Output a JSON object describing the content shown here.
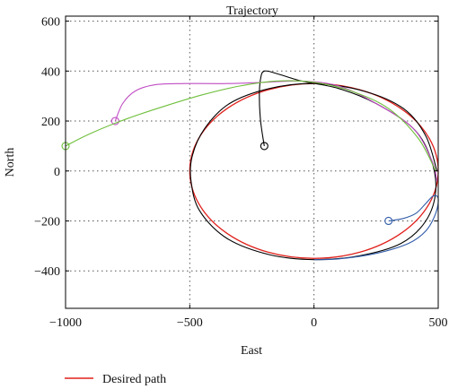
{
  "chart_data": {
    "type": "line",
    "title": "Trajectory",
    "xlabel": "East",
    "ylabel": "North",
    "xlim": [
      -1000,
      500
    ],
    "ylim": [
      -550,
      620
    ],
    "x_ticks": [
      -1000,
      -500,
      0,
      500
    ],
    "y_ticks": [
      -400,
      -200,
      0,
      200,
      400,
      600
    ],
    "grid": true,
    "legend": {
      "placement": "bottom-left",
      "entries": [
        "Desired path"
      ]
    },
    "desired_path": {
      "name": "Desired path",
      "color": "#e0201b",
      "shape": "ellipse",
      "center": [
        0,
        0
      ],
      "radius_east": 500,
      "radius_north": 350
    },
    "series": [
      {
        "color": "#000000",
        "start": [
          -200,
          100
        ],
        "points": [
          [
            -200,
            100
          ],
          [
            -215,
            200
          ],
          [
            -220,
            300
          ],
          [
            -215,
            370
          ],
          [
            -200,
            400
          ],
          [
            -150,
            390
          ],
          [
            -50,
            360
          ],
          [
            100,
            330
          ],
          [
            250,
            270
          ],
          [
            400,
            170
          ],
          [
            470,
            50
          ],
          [
            490,
            -80
          ],
          [
            450,
            -200
          ],
          [
            350,
            -290
          ],
          [
            180,
            -340
          ],
          [
            0,
            -355
          ],
          [
            -180,
            -335
          ],
          [
            -350,
            -270
          ],
          [
            -460,
            -160
          ],
          [
            -495,
            -40
          ],
          [
            -490,
            60
          ],
          [
            -440,
            170
          ],
          [
            -340,
            270
          ],
          [
            -180,
            330
          ],
          [
            0,
            350
          ],
          [
            200,
            320
          ],
          [
            360,
            250
          ],
          [
            450,
            140
          ],
          [
            495,
            0
          ]
        ]
      },
      {
        "color": "#c04dc4",
        "start": [
          -800,
          200
        ],
        "points": [
          [
            -800,
            200
          ],
          [
            -770,
            270
          ],
          [
            -720,
            320
          ],
          [
            -640,
            345
          ],
          [
            -520,
            350
          ],
          [
            -350,
            350
          ],
          [
            -200,
            355
          ],
          [
            -50,
            360
          ],
          [
            100,
            340
          ],
          [
            250,
            270
          ],
          [
            400,
            170
          ],
          [
            475,
            40
          ],
          [
            495,
            -40
          ]
        ]
      },
      {
        "color": "#6fbf3c",
        "start": [
          -1000,
          100
        ],
        "points": [
          [
            -1000,
            100
          ],
          [
            -900,
            150
          ],
          [
            -750,
            210
          ],
          [
            -600,
            260
          ],
          [
            -450,
            305
          ],
          [
            -300,
            340
          ],
          [
            -150,
            360
          ],
          [
            0,
            355
          ],
          [
            150,
            320
          ],
          [
            300,
            250
          ],
          [
            420,
            130
          ],
          [
            490,
            0
          ]
        ]
      },
      {
        "color": "#2f5aa8",
        "start": [
          300,
          -200
        ],
        "points": [
          [
            300,
            -200
          ],
          [
            360,
            -190
          ],
          [
            410,
            -170
          ],
          [
            450,
            -130
          ],
          [
            480,
            -100
          ],
          [
            500,
            -110
          ],
          [
            490,
            -170
          ],
          [
            450,
            -240
          ],
          [
            380,
            -290
          ],
          [
            250,
            -330
          ],
          [
            100,
            -352
          ],
          [
            0,
            -355
          ]
        ]
      }
    ]
  }
}
